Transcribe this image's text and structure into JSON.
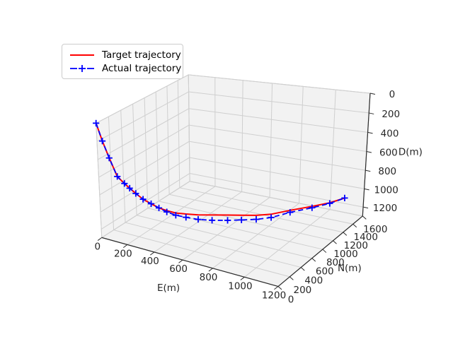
{
  "figure": {
    "background": "#ffffff"
  },
  "legend": {
    "entries": [
      {
        "label": "Target trajectory",
        "color": "#ff0000",
        "line_style": "solid",
        "marker": "none"
      },
      {
        "label": "Actual trajectory",
        "color": "#0000ff",
        "line_style": "dashed",
        "marker": "plus"
      }
    ]
  },
  "axes": {
    "e": {
      "label": "E(m)",
      "range": [
        0,
        1200
      ],
      "ticks": [
        0,
        200,
        400,
        600,
        800,
        1000,
        1200
      ]
    },
    "n": {
      "label": "N(m)",
      "range": [
        0,
        1600
      ],
      "ticks": [
        0,
        200,
        400,
        600,
        800,
        1000,
        1200,
        1400,
        1600
      ]
    },
    "d": {
      "label": "D(m)",
      "range": [
        0,
        1300
      ],
      "direction": "down",
      "ticks": [
        0,
        200,
        400,
        600,
        800,
        1000,
        1200
      ]
    }
  },
  "chart_data": {
    "type": "line",
    "projection": "3d",
    "grid": true,
    "legend_position": "upper left",
    "series": [
      {
        "name": "Target trajectory",
        "color": "#ff0000",
        "style": "solid",
        "marker": "none",
        "points": [
          [
            0,
            0,
            0
          ],
          [
            38,
            8,
            188
          ],
          [
            80,
            18,
            367
          ],
          [
            130,
            30,
            562
          ],
          [
            175,
            45,
            632
          ],
          [
            205,
            62,
            682
          ],
          [
            240,
            82,
            737
          ],
          [
            282,
            105,
            797
          ],
          [
            328,
            132,
            843
          ],
          [
            370,
            163,
            888
          ],
          [
            410,
            200,
            919
          ],
          [
            455,
            243,
            948
          ],
          [
            505,
            294,
            963
          ],
          [
            565,
            354,
            976
          ],
          [
            632,
            424,
            984
          ],
          [
            705,
            505,
            993
          ],
          [
            762,
            598,
            1015
          ],
          [
            820,
            703,
            1040
          ],
          [
            875,
            820,
            1058
          ],
          [
            950,
            950,
            1045
          ],
          [
            1040,
            1090,
            1030
          ],
          [
            1100,
            1243,
            1035
          ],
          [
            1140,
            1408,
            1040
          ]
        ]
      },
      {
        "name": "Actual trajectory",
        "color": "#0000ff",
        "style": "dashed",
        "marker": "plus",
        "points": [
          [
            0,
            0,
            0
          ],
          [
            38,
            8,
            188
          ],
          [
            80,
            18,
            367
          ],
          [
            130,
            30,
            562
          ],
          [
            175,
            45,
            632
          ],
          [
            205,
            62,
            682
          ],
          [
            240,
            82,
            737
          ],
          [
            282,
            105,
            797
          ],
          [
            328,
            132,
            843
          ],
          [
            370,
            163,
            888
          ],
          [
            410,
            200,
            934
          ],
          [
            455,
            243,
            973
          ],
          [
            505,
            294,
            1000
          ],
          [
            565,
            354,
            1027
          ],
          [
            632,
            424,
            1042
          ],
          [
            705,
            505,
            1051
          ],
          [
            762,
            598,
            1066
          ],
          [
            820,
            703,
            1084
          ],
          [
            875,
            820,
            1095
          ],
          [
            950,
            950,
            1067
          ],
          [
            1040,
            1090,
            1045
          ],
          [
            1100,
            1243,
            1042
          ],
          [
            1140,
            1408,
            1040
          ]
        ]
      }
    ]
  }
}
